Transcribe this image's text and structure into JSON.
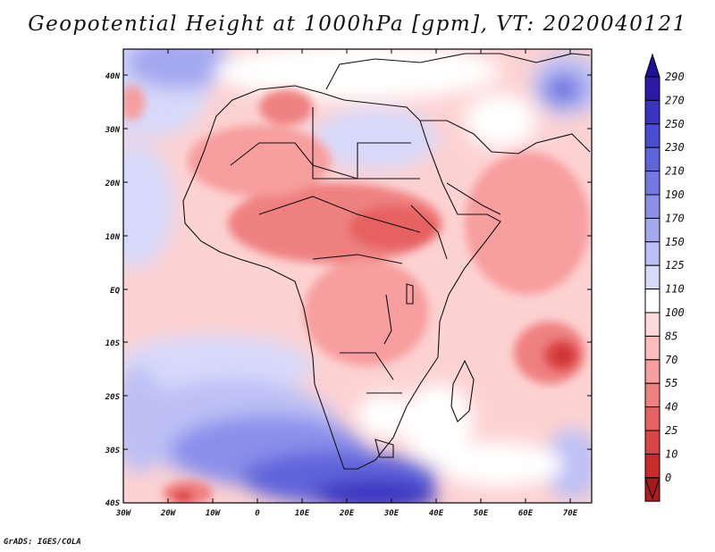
{
  "title": "Geopotential Height at 1000hPa [gpm], VT: 2020040121",
  "footer": "GrADS: IGES/COLA",
  "map": {
    "region": "Africa",
    "lat_labels": [
      "40N",
      "30N",
      "20N",
      "10N",
      "EQ",
      "10S",
      "20S",
      "30S",
      "40S"
    ],
    "lon_labels": [
      "30W",
      "20W",
      "10W",
      "0",
      "10E",
      "20E",
      "30E",
      "40E",
      "50E",
      "60E",
      "70E"
    ]
  },
  "colorbar": {
    "labels": [
      "290",
      "270",
      "250",
      "230",
      "210",
      "190",
      "170",
      "150",
      "125",
      "110",
      "100",
      "85",
      "70",
      "55",
      "40",
      "25",
      "10",
      "0"
    ],
    "colors": [
      "#2b1aa8",
      "#3a34c0",
      "#4b4dd0",
      "#5e64da",
      "#7478e2",
      "#8b8fea",
      "#a4a8f0",
      "#bcc0f5",
      "#d7d9fa",
      "#ffffff",
      "#ffd9d9",
      "#fcbcbc",
      "#f79e9e",
      "#ef8080",
      "#e66262",
      "#dc4545",
      "#c92b2b",
      "#ae1c1c"
    ],
    "top_arrow_color": "#1e1296",
    "bottom_arrow_color": "#a51a1a"
  }
}
